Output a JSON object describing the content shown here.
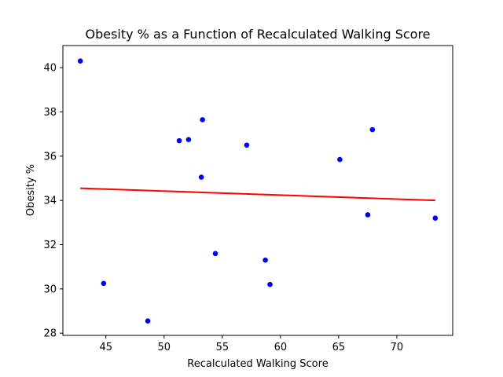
{
  "chart_data": {
    "type": "scatter",
    "title": "Obesity % as a Function of Recalculated Walking Score",
    "xlabel": "Recalculated Walking Score",
    "ylabel": "Obesity %",
    "xlim": [
      41.3,
      74.8
    ],
    "ylim": [
      27.9,
      41.0
    ],
    "xticks": [
      45,
      50,
      55,
      60,
      65,
      70
    ],
    "yticks": [
      28,
      30,
      32,
      34,
      36,
      38,
      40
    ],
    "grid": false,
    "series": [
      {
        "kind": "scatter",
        "color": "#0000ff",
        "points": [
          {
            "x": 42.8,
            "y": 40.3
          },
          {
            "x": 44.8,
            "y": 30.25
          },
          {
            "x": 48.6,
            "y": 28.55
          },
          {
            "x": 51.3,
            "y": 36.7
          },
          {
            "x": 52.1,
            "y": 36.75
          },
          {
            "x": 53.2,
            "y": 35.05
          },
          {
            "x": 53.3,
            "y": 37.65
          },
          {
            "x": 54.4,
            "y": 31.6
          },
          {
            "x": 57.1,
            "y": 36.5
          },
          {
            "x": 58.7,
            "y": 31.3
          },
          {
            "x": 59.1,
            "y": 30.2
          },
          {
            "x": 65.1,
            "y": 35.85
          },
          {
            "x": 67.5,
            "y": 33.35
          },
          {
            "x": 67.9,
            "y": 37.2
          },
          {
            "x": 73.3,
            "y": 33.2
          }
        ]
      },
      {
        "kind": "line",
        "color": "#ff0000",
        "points": [
          {
            "x": 42.8,
            "y": 34.55
          },
          {
            "x": 73.3,
            "y": 34.0
          }
        ]
      }
    ]
  }
}
